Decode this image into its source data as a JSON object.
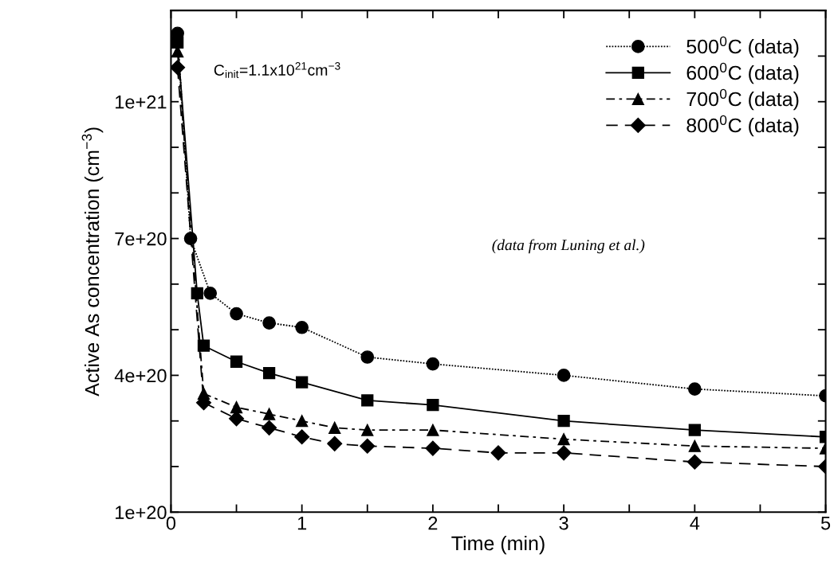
{
  "chart_data": {
    "type": "line",
    "xlabel": "Time (min)",
    "ylabel": "Active As concentration (cm$^{−3}$)",
    "annotations": [
      "C$_{init}$=1.1x10$^{21}$cm$^{−3}$",
      "(data from Luning et al.)"
    ],
    "xlim": [
      0,
      5
    ],
    "ylim": [
      1e+20,
      1.2e+21
    ],
    "xticks": [
      0,
      {
        "value": 0.5,
        "label": null
      },
      1,
      {
        "value": 1.5,
        "label": null
      },
      2,
      {
        "value": 2.5,
        "label": null
      },
      3,
      {
        "value": 3.5,
        "label": null
      },
      4,
      {
        "value": 4.5,
        "label": null
      },
      5
    ],
    "yticks": [
      {
        "value": 1e+20,
        "label": "1e+20"
      },
      {
        "value": 2e+20,
        "label": null
      },
      {
        "value": 3e+20,
        "label": null
      },
      {
        "value": 4e+20,
        "label": "4e+20"
      },
      {
        "value": 5e+20,
        "label": null
      },
      {
        "value": 6e+20,
        "label": null
      },
      {
        "value": 7e+20,
        "label": "7e+20"
      },
      {
        "value": 8e+20,
        "label": null
      },
      {
        "value": 9e+20,
        "label": null
      },
      {
        "value": 1e+21,
        "label": "1e+21"
      },
      {
        "value": 1.1e+21,
        "label": null
      },
      {
        "value": 1.2e+21,
        "label": null
      }
    ],
    "grid": false,
    "legend": "top right",
    "series": [
      {
        "name": "500$^{0}$C (data)",
        "color": "#000000",
        "marker": "circle",
        "line_style": "dotted",
        "x": [
          0.05,
          0.15,
          0.3,
          0.5,
          0.75,
          1.0,
          1.5,
          2.0,
          3.0,
          4.0,
          5.0
        ],
        "values": [
          1.15e+21,
          7e+20,
          5.8e+20,
          5.35e+20,
          5.15e+20,
          5.05e+20,
          4.4e+20,
          4.25e+20,
          4e+20,
          3.7e+20,
          3.55e+20
        ]
      },
      {
        "name": "600$^{0}$C (data)",
        "color": "#000000",
        "marker": "square",
        "line_style": "solid",
        "x": [
          0.05,
          0.2,
          0.25,
          0.5,
          0.75,
          1.0,
          1.5,
          2.0,
          3.0,
          4.0,
          5.0
        ],
        "values": [
          1.13e+21,
          5.8e+20,
          4.65e+20,
          4.3e+20,
          4.05e+20,
          3.85e+20,
          3.45e+20,
          3.35e+20,
          3e+20,
          2.8e+20,
          2.65e+20
        ]
      },
      {
        "name": "700$^{0}$C (data)",
        "color": "#000000",
        "marker": "triangle",
        "line_style": "dashdot",
        "x": [
          0.05,
          0.25,
          0.5,
          0.75,
          1.0,
          1.25,
          1.5,
          2.0,
          3.0,
          4.0,
          5.0
        ],
        "values": [
          1.11e+21,
          3.6e+20,
          3.3e+20,
          3.15e+20,
          3e+20,
          2.85e+20,
          2.8e+20,
          2.8e+20,
          2.6e+20,
          2.45e+20,
          2.4e+20
        ]
      },
      {
        "name": "800$^{0}$C (data)",
        "color": "#000000",
        "marker": "diamond",
        "line_style": "dashed",
        "x": [
          0.05,
          0.25,
          0.5,
          0.75,
          1.0,
          1.25,
          1.5,
          2.0,
          2.5,
          3.0,
          4.0,
          5.0
        ],
        "values": [
          1.075e+21,
          3.4e+20,
          3.05e+20,
          2.85e+20,
          2.65e+20,
          2.5e+20,
          2.45e+20,
          2.4e+20,
          2.3e+20,
          2.3e+20,
          2.1e+20,
          2e+20
        ]
      }
    ]
  }
}
